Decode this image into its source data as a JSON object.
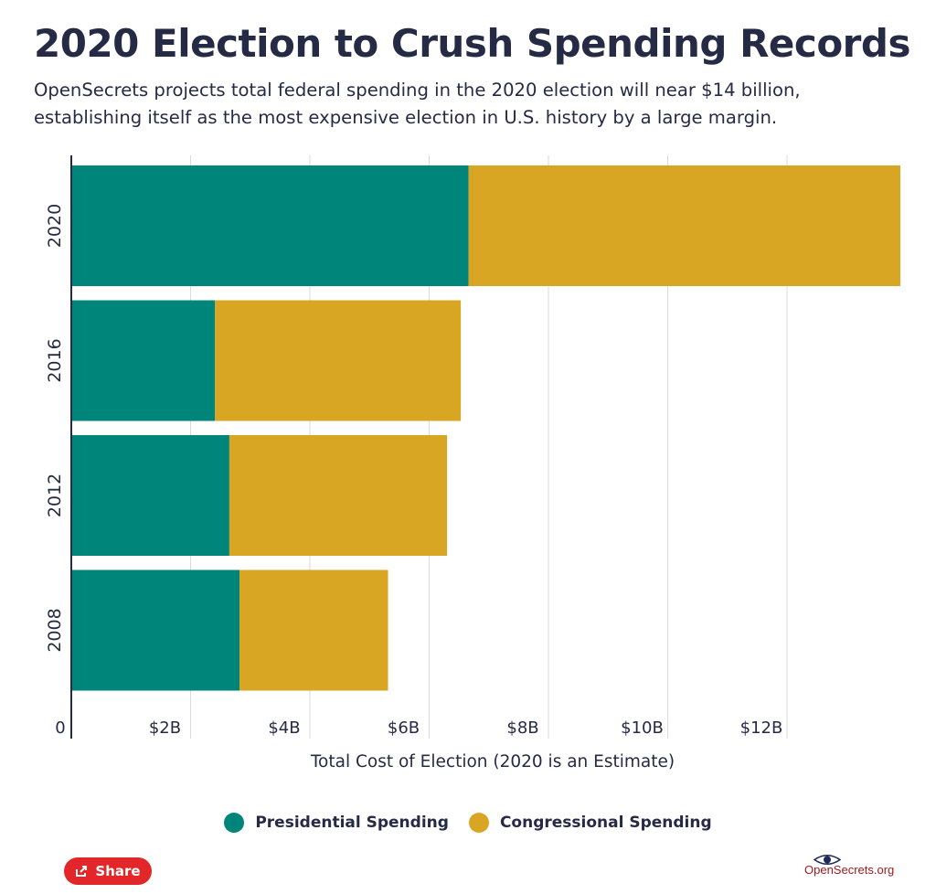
{
  "header": {
    "title": "2020 Election to Crush Spending Records",
    "subtitle": "OpenSecrets projects total federal spending in the 2020 election will near $14 billion, establishing itself as the most expensive election in U.S. history by a large margin."
  },
  "chart_data": {
    "type": "bar",
    "orientation": "horizontal",
    "stacked": true,
    "categories": [
      "2020",
      "2016",
      "2012",
      "2008"
    ],
    "series": [
      {
        "name": "Presidential Spending",
        "color": "#00857a",
        "values": [
          6.66,
          2.41,
          2.65,
          2.82
        ]
      },
      {
        "name": "Congressional Spending",
        "color": "#d9a624",
        "values": [
          7.24,
          4.12,
          3.65,
          2.49
        ]
      }
    ],
    "xlabel": "Total Cost of Election (2020 is an Estimate)",
    "xticks": [
      0,
      2,
      4,
      6,
      8,
      10,
      12
    ],
    "xtick_labels": [
      "0",
      "$2B",
      "$4B",
      "$6B",
      "$8B",
      "$10B",
      "$12B"
    ],
    "xlim": [
      0,
      13.9
    ],
    "grid": true,
    "legend_position": "bottom"
  },
  "footer": {
    "share_label": "Share",
    "logo_text": "OpenSecrets.org"
  }
}
